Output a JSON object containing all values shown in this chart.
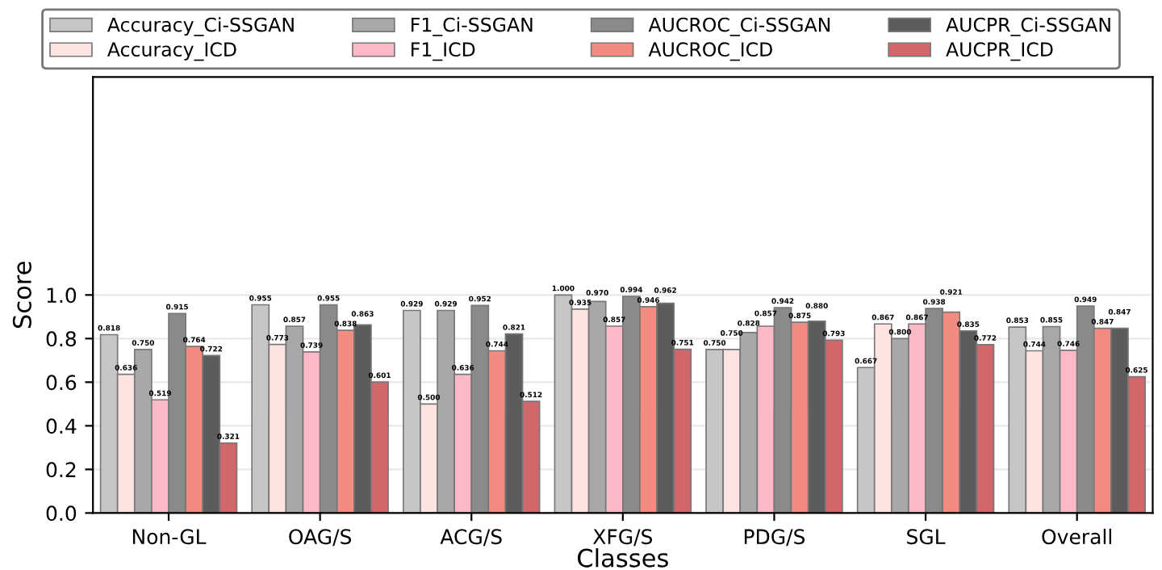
{
  "chart_data": {
    "type": "bar",
    "xlabel": "Classes",
    "ylabel": "Score",
    "categories": [
      "Non-GL",
      "OAG/S",
      "ACG/S",
      "XFG/S",
      "PDG/S",
      "SGL",
      "Overall"
    ],
    "series": [
      {
        "name": "Accuracy_Ci-SSGAN",
        "color": "#c6c6c6",
        "values": [
          0.818,
          0.955,
          0.929,
          1.0,
          0.75,
          0.667,
          0.853
        ],
        "value_labels": [
          "0.818",
          "0.955",
          "0.929",
          "1.000",
          "0.750",
          "0.667",
          "0.853"
        ]
      },
      {
        "name": "Accuracy_ICD",
        "color": "#fde3e1",
        "values": [
          0.636,
          0.773,
          0.5,
          0.935,
          0.75,
          0.867,
          0.744
        ],
        "value_labels": [
          "0.636",
          "0.773",
          "0.500",
          "0.935",
          "0.750",
          "0.867",
          "0.744"
        ]
      },
      {
        "name": "F1_Ci-SSGAN",
        "color": "#a8a8a8",
        "values": [
          0.75,
          0.857,
          0.929,
          0.97,
          0.828,
          0.8,
          0.855
        ],
        "value_labels": [
          "0.750",
          "0.857",
          "0.929",
          "0.970",
          "0.828",
          "0.800",
          "0.855"
        ]
      },
      {
        "name": "F1_ICD",
        "color": "#fbb9c7",
        "values": [
          0.519,
          0.739,
          0.636,
          0.857,
          0.857,
          0.867,
          0.746
        ],
        "value_labels": [
          "0.519",
          "0.739",
          "0.636",
          "0.857",
          "0.857",
          "0.867",
          "0.746"
        ]
      },
      {
        "name": "AUCROC_Ci-SSGAN",
        "color": "#8a8a8a",
        "values": [
          0.915,
          0.955,
          0.952,
          0.994,
          0.942,
          0.938,
          0.949
        ],
        "value_labels": [
          "0.915",
          "0.955",
          "0.952",
          "0.994",
          "0.942",
          "0.938",
          "0.949"
        ]
      },
      {
        "name": "AUCROC_ICD",
        "color": "#f28b80",
        "values": [
          0.764,
          0.838,
          0.744,
          0.946,
          0.875,
          0.921,
          0.847
        ],
        "value_labels": [
          "0.764",
          "0.838",
          "0.744",
          "0.946",
          "0.875",
          "0.921",
          "0.847"
        ]
      },
      {
        "name": "AUCPR_Ci-SSGAN",
        "color": "#5c5c5c",
        "values": [
          0.722,
          0.863,
          0.821,
          0.962,
          0.88,
          0.835,
          0.847
        ],
        "value_labels": [
          "0.722",
          "0.863",
          "0.821",
          "0.962",
          "0.880",
          "0.835",
          "0.847"
        ]
      },
      {
        "name": "AUCPR_ICD",
        "color": "#d0676a",
        "values": [
          0.321,
          0.601,
          0.512,
          0.751,
          0.793,
          0.772,
          0.625
        ],
        "value_labels": [
          "0.321",
          "0.601",
          "0.512",
          "0.751",
          "0.793",
          "0.772",
          "0.625"
        ]
      }
    ],
    "ylim": [
      0,
      2.0
    ],
    "yticks": [
      {
        "value": 0,
        "label": "0.0"
      },
      0.2,
      0.4,
      0.6,
      0.8,
      {
        "value": 1,
        "label": "1.0"
      }
    ],
    "grid": "y",
    "legend": "top"
  }
}
